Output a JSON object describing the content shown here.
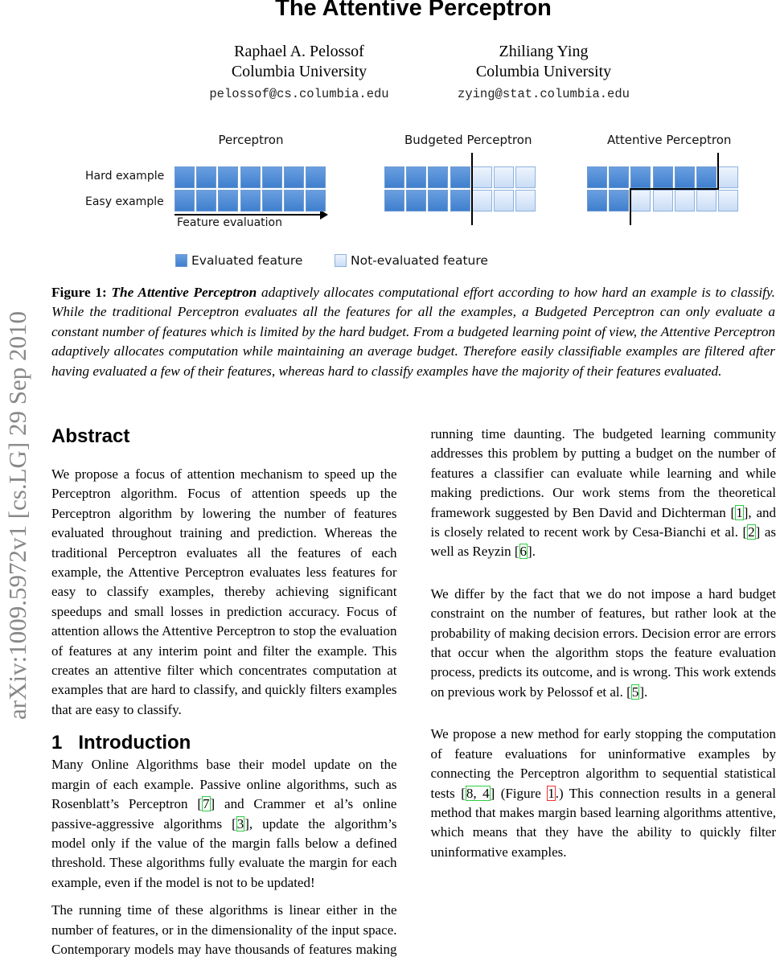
{
  "title": "The Attentive Perceptron",
  "authors": [
    {
      "name": "Raphael A. Pelossof",
      "affiliation": "Columbia University",
      "email": "pelossof@cs.columbia.edu"
    },
    {
      "name": "Zhiliang Ying",
      "affiliation": "Columbia University",
      "email": "zying@stat.columbia.edu"
    }
  ],
  "arxiv_id": "arXiv:1009.5972v1  [cs.LG]  29 Sep 2010",
  "figure": {
    "panels": [
      {
        "title": "Perceptron",
        "hard_evaluated": 7,
        "easy_evaluated": 7,
        "total": 7
      },
      {
        "title": "Budgeted Perceptron",
        "hard_evaluated": 4,
        "easy_evaluated": 4,
        "total": 7
      },
      {
        "title": "Attentive Perceptron",
        "hard_evaluated": 6,
        "easy_evaluated": 2,
        "total": 7
      }
    ],
    "row_labels": [
      "Hard example",
      "Easy example"
    ],
    "arrow_label": "Feature evaluation",
    "legend": [
      "Evaluated feature",
      "Not-evaluated feature"
    ],
    "colors": {
      "evaluated": "#4f8bd6",
      "not_evaluated": "#dbe8f9"
    }
  },
  "caption": {
    "label": "Figure 1:",
    "bold_title": "The Attentive Perceptron",
    "text": " adaptively allocates computational effort according to how hard an example is to classify. While the traditional Perceptron evaluates all the features for all the examples, a Budgeted Perceptron can only evaluate a constant number of features which is limited by the hard budget. From a budgeted learning point of view, the Attentive Perceptron adaptively allocates computation while maintaining an average budget. Therefore easily classifiable examples are filtered after having evaluated a few of their features, whereas hard to classify examples have the majority of their features evaluated."
  },
  "abstract": {
    "heading": "Abstract",
    "text": "We propose a focus of attention mechanism to speed up the Perceptron algorithm. Focus of attention speeds up the Perceptron algorithm by lowering the number of features evaluated throughout training and prediction. Whereas the traditional Perceptron evaluates all the features of each example, the Attentive Perceptron evaluates less features for easy to classify examples, thereby achieving significant speedups and small losses in prediction accuracy. Focus of attention allows the Attentive Perceptron to stop the evaluation of features at any interim point and filter the example. This creates an attentive filter which concentrates computation at examples that are hard to classify, and quickly filters examples that are easy to classify."
  },
  "intro": {
    "heading_number": "1",
    "heading": "Introduction",
    "paragraphs": [
      [
        {
          "t": "Many Online Algorithms base their model update on the margin of each example. Passive online algorithms, such as Rosenblatt’s Perceptron "
        },
        {
          "c": "7"
        },
        {
          "t": " and Crammer et al’s online passive-aggressive algorithms "
        },
        {
          "c": "3"
        },
        {
          "t": ", update the algorithm’s model only if the value of the margin falls below a defined threshold. These algorithms fully evaluate the margin for each example, even if the model is not to be updated!"
        }
      ],
      [
        {
          "t": "The running time of these algorithms is linear either in the number of features, or in the dimensionality of the input space. Contemporary models may have thousands of features making running time daunting. The budgeted learning community addresses this problem by putting a budget on the number of features a classifier can evaluate while learning and while making predictions. Our work stems from the theoretical framework suggested by Ben David and Dichterman "
        },
        {
          "c": "1"
        },
        {
          "t": ", and is closely related to recent work by Cesa-Bianchi et al. "
        },
        {
          "c": "2"
        },
        {
          "t": " as well as Reyzin "
        },
        {
          "c": "6"
        },
        {
          "t": "."
        }
      ],
      [
        {
          "t": "We differ by the fact that we do not impose a hard budget constraint on the number of features, but rather look at the probability of making decision errors. Decision error are errors that occur when the algorithm stops the feature evaluation process, predicts its outcome, and is wrong. This work extends on previous work by Pelossof et al. "
        },
        {
          "c": "5"
        },
        {
          "t": "."
        }
      ],
      [
        {
          "t": "We propose a new method for early stopping the computation of feature evaluations for uninformative examples by connecting the Perceptron algorithm to sequential statistical tests "
        },
        {
          "c": "8, 4"
        },
        {
          "t": " (Figure "
        },
        {
          "c": "1",
          "fig": true
        },
        {
          "t": ".) This connection results in a general method that makes margin based learning algorithms attentive, which means that they have the ability to quickly filter uninformative examples."
        }
      ]
    ]
  }
}
